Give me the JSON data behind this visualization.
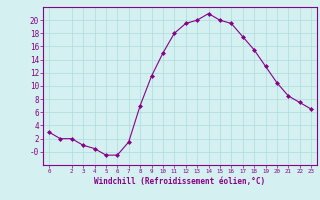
{
  "x": [
    0,
    1,
    2,
    3,
    4,
    5,
    6,
    7,
    8,
    9,
    10,
    11,
    12,
    13,
    14,
    15,
    16,
    17,
    18,
    19,
    20,
    21,
    22,
    23
  ],
  "y": [
    3,
    2,
    2,
    1,
    0.5,
    -0.5,
    -0.5,
    1.5,
    7,
    11.5,
    15,
    18,
    19.5,
    20,
    21,
    20,
    19.5,
    17.5,
    15.5,
    13,
    10.5,
    8.5,
    7.5,
    6.5
  ],
  "line_color": "#880088",
  "marker": "D",
  "marker_size": 2.0,
  "background_color": "#d4f0f0",
  "grid_color": "#aadddd",
  "axis_color": "#880088",
  "tick_color": "#880088",
  "xlabel": "Windchill (Refroidissement éolien,°C)",
  "xlabel_fontsize": 5.5,
  "ylabel_ticks": [
    0,
    2,
    4,
    6,
    8,
    10,
    12,
    14,
    16,
    18,
    20
  ],
  "ylim": [
    -2,
    22
  ],
  "xlim": [
    -0.5,
    23.5
  ],
  "xticks": [
    0,
    2,
    3,
    4,
    5,
    6,
    7,
    8,
    9,
    10,
    11,
    12,
    13,
    14,
    15,
    16,
    17,
    18,
    19,
    20,
    21,
    22,
    23
  ],
  "xtick_labels": [
    "0",
    "2",
    "3",
    "4",
    "5",
    "6",
    "7",
    "8",
    "9",
    "10",
    "11",
    "12",
    "13",
    "14",
    "15",
    "16",
    "17",
    "18",
    "19",
    "20",
    "21",
    "22",
    "23"
  ],
  "ytick_labels": [
    "-0",
    "2",
    "4",
    "6",
    "8",
    "10",
    "12",
    "14",
    "16",
    "18",
    "20"
  ]
}
